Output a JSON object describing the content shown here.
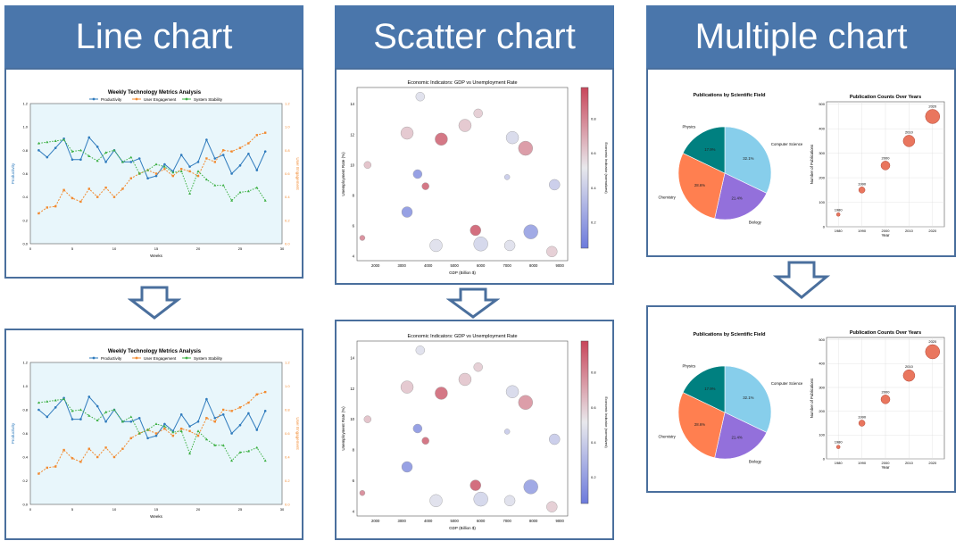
{
  "headers": [
    "Line chart",
    "Scatter chart",
    "Multiple chart"
  ],
  "line": {
    "title": "Weekly Technology Metrics Analysis",
    "xlabel": "Weeks",
    "ylabel_left": "Productivity",
    "ylabel_right": "User Engagement",
    "legend": [
      "Productivity",
      "User Engagement",
      "System Stability"
    ],
    "colors": [
      "#2f7bbd",
      "#f28a30",
      "#3cb043"
    ],
    "y_ticks": [
      "0.0",
      "0.2",
      "0.4",
      "0.6",
      "0.8",
      "1.0",
      "1.2"
    ],
    "x_ticks": [
      "0",
      "5",
      "10",
      "15",
      "20",
      "25",
      "30"
    ],
    "chart_data": {
      "type": "line",
      "x": [
        1,
        2,
        3,
        4,
        5,
        6,
        7,
        8,
        9,
        10,
        11,
        12,
        13,
        14,
        15,
        16,
        17,
        18,
        19,
        20,
        21,
        22,
        23,
        24,
        25,
        26,
        27,
        28
      ],
      "series": [
        {
          "name": "Productivity",
          "values": [
            0.8,
            0.74,
            0.82,
            0.9,
            0.72,
            0.72,
            0.91,
            0.83,
            0.7,
            0.8,
            0.7,
            0.7,
            0.73,
            0.56,
            0.58,
            0.68,
            0.62,
            0.76,
            0.66,
            0.7,
            0.89,
            0.73,
            0.76,
            0.6,
            0.67,
            0.77,
            0.63,
            0.79
          ]
        },
        {
          "name": "User Engagement",
          "values": [
            0.26,
            0.31,
            0.32,
            0.46,
            0.39,
            0.36,
            0.47,
            0.4,
            0.48,
            0.4,
            0.47,
            0.56,
            0.6,
            0.63,
            0.6,
            0.64,
            0.58,
            0.64,
            0.62,
            0.58,
            0.73,
            0.7,
            0.8,
            0.79,
            0.82,
            0.86,
            0.93,
            0.95
          ]
        },
        {
          "name": "System Stability",
          "values": [
            0.86,
            0.87,
            0.88,
            0.89,
            0.79,
            0.8,
            0.75,
            0.71,
            0.78,
            0.8,
            0.7,
            0.74,
            0.6,
            0.63,
            0.68,
            0.66,
            0.61,
            0.62,
            0.43,
            0.62,
            0.55,
            0.5,
            0.5,
            0.37,
            0.44,
            0.45,
            0.48,
            0.37
          ]
        }
      ]
    }
  },
  "scatter": {
    "title": "Economic Indicators: GDP vs Unemployment Rate",
    "xlabel": "GDP (Billion $)",
    "ylabel": "Unemployment Rate (%)",
    "colorbar_label": "Economic Indicator (normalized)",
    "x_ticks": [
      "2000",
      "3000",
      "4000",
      "5000",
      "6000",
      "7000",
      "8000",
      "9000"
    ],
    "y_ticks": [
      "4",
      "6",
      "8",
      "10",
      "12",
      "14"
    ],
    "cb_ticks": [
      "0.2",
      "0.4",
      "0.6",
      "0.8"
    ],
    "chart_data": {
      "type": "scatter",
      "points": [
        {
          "x": 3700,
          "y": 14.5,
          "s": 5,
          "c": 0.45
        },
        {
          "x": 5400,
          "y": 12.6,
          "s": 7,
          "c": 0.62
        },
        {
          "x": 5900,
          "y": 13.4,
          "s": 5,
          "c": 0.6
        },
        {
          "x": 3200,
          "y": 12.1,
          "s": 7,
          "c": 0.62
        },
        {
          "x": 4500,
          "y": 11.7,
          "s": 7,
          "c": 0.92
        },
        {
          "x": 7200,
          "y": 11.8,
          "s": 7,
          "c": 0.42
        },
        {
          "x": 7700,
          "y": 11.1,
          "s": 8,
          "c": 0.78
        },
        {
          "x": 1700,
          "y": 10.0,
          "s": 4,
          "c": 0.64
        },
        {
          "x": 3600,
          "y": 9.4,
          "s": 5,
          "c": 0.1
        },
        {
          "x": 7000,
          "y": 9.2,
          "s": 3,
          "c": 0.35
        },
        {
          "x": 8800,
          "y": 8.7,
          "s": 6,
          "c": 0.35
        },
        {
          "x": 3900,
          "y": 8.6,
          "s": 4,
          "c": 0.92
        },
        {
          "x": 3200,
          "y": 6.9,
          "s": 6,
          "c": 0.1
        },
        {
          "x": 5800,
          "y": 5.7,
          "s": 6,
          "c": 0.95
        },
        {
          "x": 7900,
          "y": 5.6,
          "s": 8,
          "c": 0.15
        },
        {
          "x": 1500,
          "y": 5.2,
          "s": 3,
          "c": 0.82
        },
        {
          "x": 4300,
          "y": 4.7,
          "s": 7,
          "c": 0.45
        },
        {
          "x": 6000,
          "y": 4.8,
          "s": 8,
          "c": 0.4
        },
        {
          "x": 7100,
          "y": 4.7,
          "s": 6,
          "c": 0.45
        },
        {
          "x": 8700,
          "y": 4.3,
          "s": 6,
          "c": 0.6
        }
      ]
    }
  },
  "multi": {
    "pie_title": "Publications by Scientific Field",
    "bubble_title": "Publication Counts Over Years",
    "bubble_xlabel": "Year",
    "bubble_ylabel": "Number of Publications",
    "bubble_x_ticks": [
      "1980",
      "1990",
      "2000",
      "2010",
      "2020"
    ],
    "bubble_y_ticks": [
      "0",
      "100",
      "200",
      "300",
      "400",
      "500"
    ],
    "pie_colors": [
      "#87ceeb",
      "#9370db",
      "#ff7f50",
      "#008080"
    ],
    "bubble_color": "#e9765e",
    "pie_data": {
      "type": "pie",
      "labels": [
        "Computer Science",
        "Biology",
        "Chemistry",
        "Physics"
      ],
      "values": [
        32.1,
        21.4,
        28.6,
        17.9
      ],
      "value_labels": [
        "32.1%",
        "21.4%",
        "28.6%",
        "17.9%"
      ]
    },
    "bubble_data": {
      "type": "scatter",
      "x": [
        1980,
        1990,
        2000,
        2010,
        2020
      ],
      "y": [
        50,
        150,
        250,
        350,
        450
      ],
      "point_labels": [
        "1980",
        "1990",
        "2000",
        "2010",
        "2020"
      ]
    }
  }
}
